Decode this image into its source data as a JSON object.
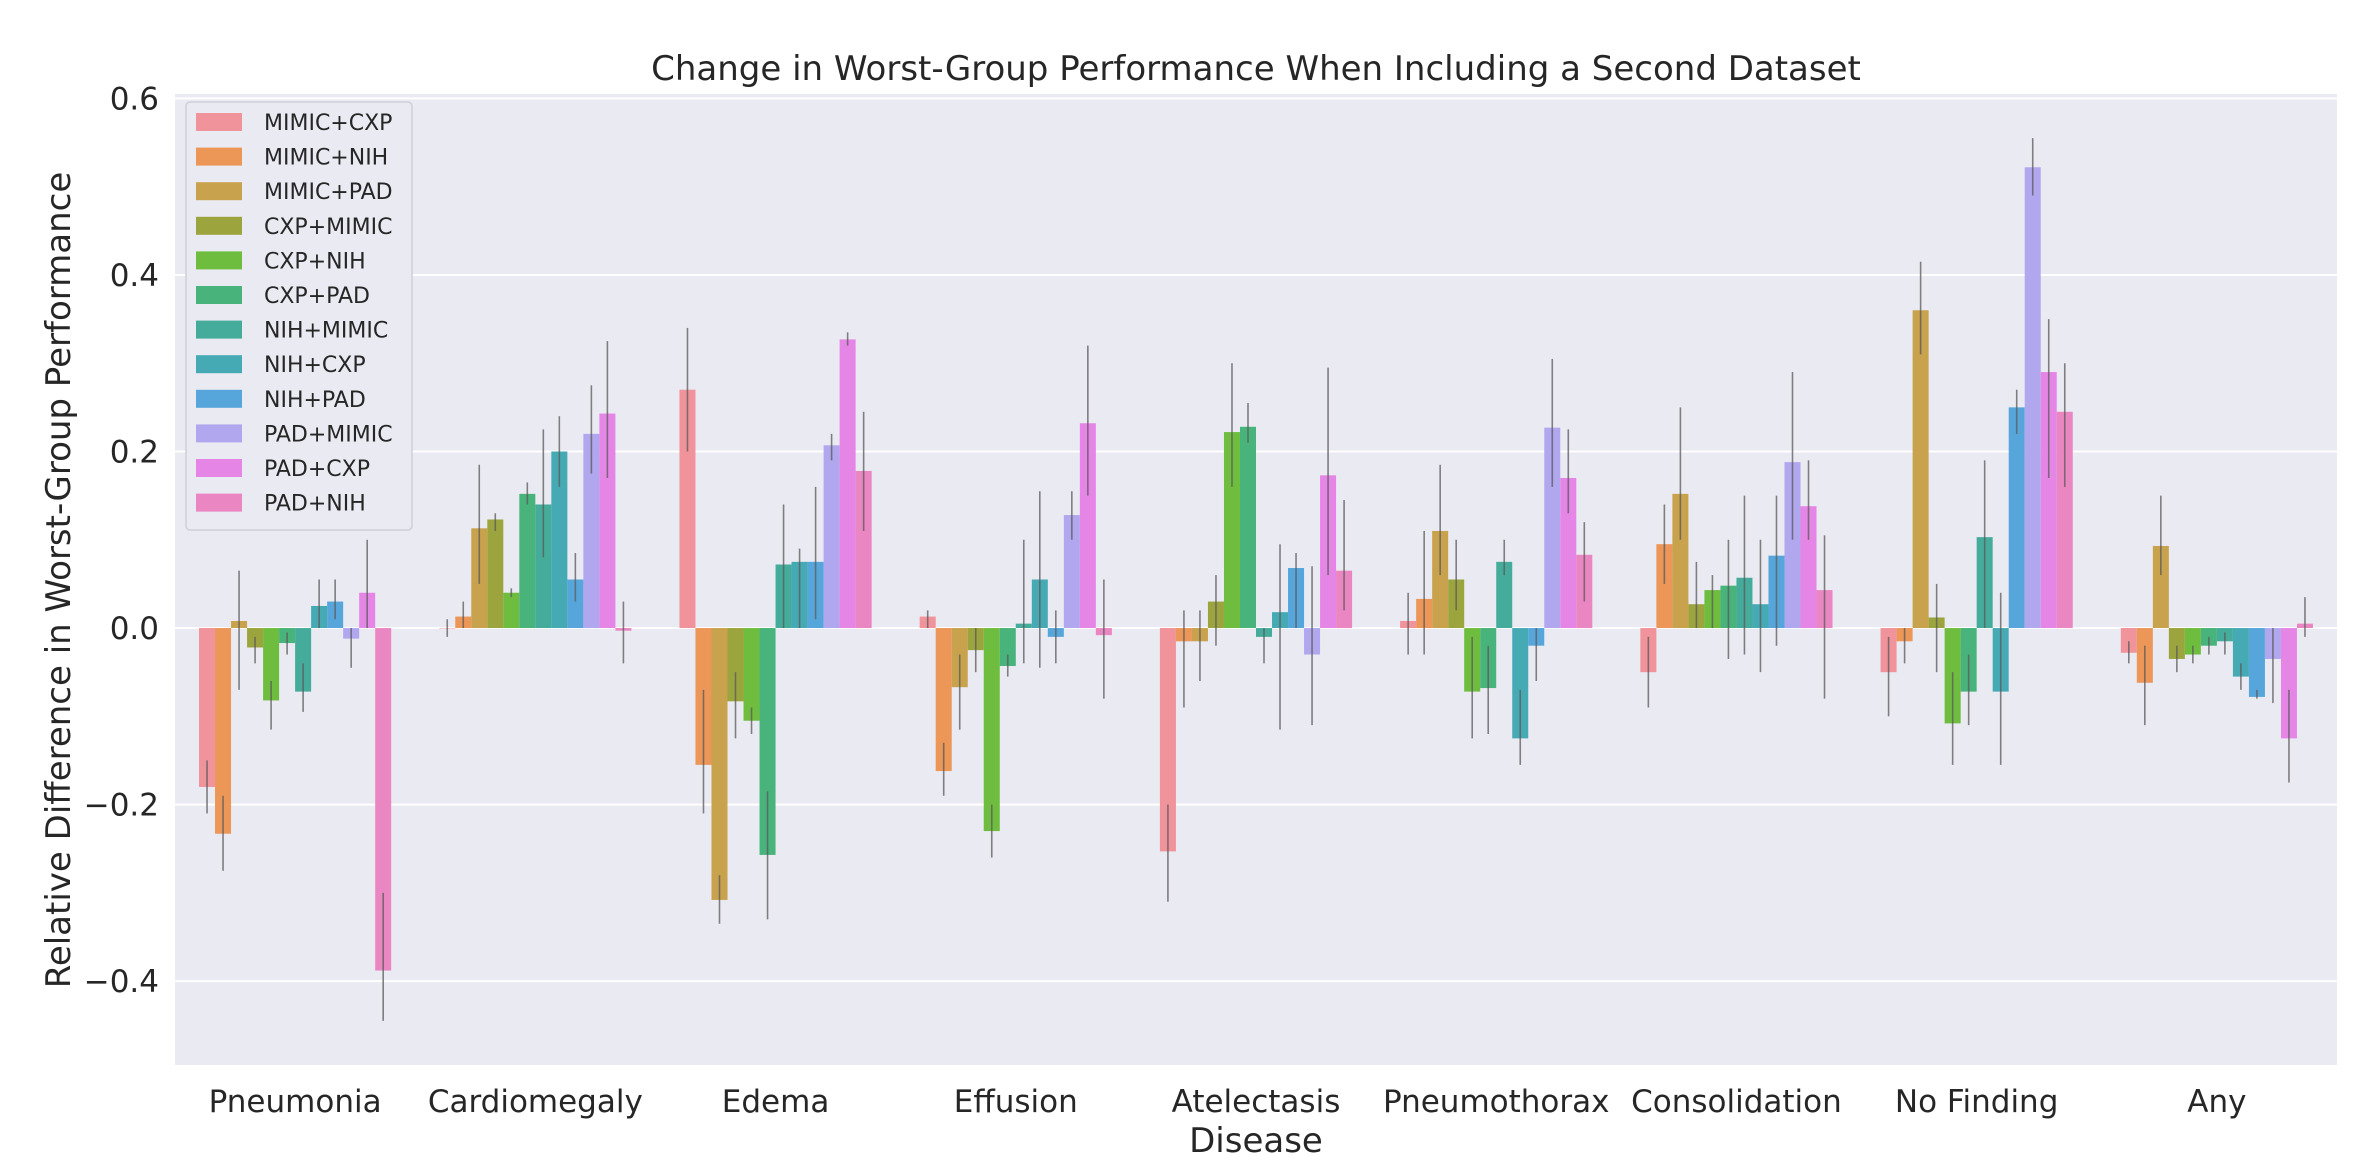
{
  "chart_data": {
    "type": "bar",
    "title": "Change in Worst-Group Performance When Including a Second Dataset",
    "xlabel": "Disease",
    "ylabel": "Relative Difference in Worst-Group Performance",
    "ylim": [
      -0.495,
      0.605
    ],
    "yticks": [
      -0.4,
      -0.2,
      0.0,
      0.2,
      0.4,
      0.6
    ],
    "ytick_labels": [
      "−0.4",
      "−0.2",
      "0.0",
      "0.2",
      "0.4",
      "0.6"
    ],
    "grid": true,
    "legend_position": "top-left",
    "categories": [
      "Pneumonia",
      "Cardiomegaly",
      "Edema",
      "Effusion",
      "Atelectasis",
      "Pneumothorax",
      "Consolidation",
      "No Finding",
      "Any"
    ],
    "series": [
      {
        "name": "MIMIC+CXP",
        "color": "#f0939a",
        "values": [
          -0.18,
          0.0,
          0.27,
          0.013,
          -0.253,
          0.008,
          -0.05,
          -0.05,
          -0.028
        ],
        "err_low": [
          -0.21,
          -0.01,
          0.2,
          0.0,
          -0.31,
          -0.03,
          -0.09,
          -0.1,
          -0.04
        ],
        "err_high": [
          -0.15,
          0.01,
          0.34,
          0.02,
          -0.2,
          0.04,
          -0.01,
          -0.01,
          -0.015
        ]
      },
      {
        "name": "MIMIC+NIH",
        "color": "#ec9658",
        "values": [
          -0.233,
          0.013,
          -0.155,
          -0.162,
          -0.015,
          0.033,
          0.095,
          -0.015,
          -0.062
        ],
        "err_low": [
          -0.275,
          0.0,
          -0.21,
          -0.19,
          -0.09,
          -0.03,
          0.05,
          -0.04,
          -0.11
        ],
        "err_high": [
          -0.19,
          0.03,
          -0.07,
          -0.13,
          0.02,
          0.11,
          0.14,
          0.0,
          -0.02
        ]
      },
      {
        "name": "MIMIC+PAD",
        "color": "#c8a24c",
        "values": [
          0.008,
          0.113,
          -0.308,
          -0.067,
          -0.015,
          0.11,
          0.152,
          0.36,
          0.093
        ],
        "err_low": [
          -0.07,
          0.05,
          -0.335,
          -0.115,
          -0.06,
          0.06,
          0.1,
          0.31,
          0.06
        ],
        "err_high": [
          0.065,
          0.185,
          -0.28,
          -0.03,
          0.02,
          0.185,
          0.25,
          0.415,
          0.15
        ]
      },
      {
        "name": "CXP+MIMIC",
        "color": "#9ca53d",
        "values": [
          -0.022,
          0.123,
          -0.083,
          -0.025,
          0.03,
          0.055,
          0.027,
          0.012,
          -0.035
        ],
        "err_low": [
          -0.04,
          0.11,
          -0.125,
          -0.05,
          -0.02,
          0.02,
          0.0,
          -0.05,
          -0.05
        ],
        "err_high": [
          -0.01,
          0.13,
          -0.05,
          0.0,
          0.06,
          0.1,
          0.075,
          0.05,
          -0.02
        ]
      },
      {
        "name": "CXP+NIH",
        "color": "#6fbd3e",
        "values": [
          -0.082,
          0.04,
          -0.105,
          -0.23,
          0.222,
          -0.072,
          0.043,
          -0.108,
          -0.03
        ],
        "err_low": [
          -0.115,
          0.035,
          -0.12,
          -0.26,
          0.16,
          -0.125,
          0.0,
          -0.155,
          -0.04
        ],
        "err_high": [
          -0.06,
          0.045,
          -0.09,
          -0.2,
          0.3,
          -0.01,
          0.06,
          -0.05,
          -0.02
        ]
      },
      {
        "name": "CXP+PAD",
        "color": "#48b37a",
        "values": [
          -0.017,
          0.152,
          -0.257,
          -0.043,
          0.228,
          -0.068,
          0.048,
          -0.072,
          -0.02
        ],
        "err_low": [
          -0.03,
          0.14,
          -0.33,
          -0.055,
          0.21,
          -0.12,
          -0.035,
          -0.11,
          -0.03
        ],
        "err_high": [
          -0.005,
          0.165,
          -0.185,
          -0.03,
          0.255,
          -0.02,
          0.1,
          -0.03,
          -0.01
        ]
      },
      {
        "name": "NIH+MIMIC",
        "color": "#45ac9c",
        "values": [
          -0.072,
          0.14,
          0.072,
          0.005,
          -0.01,
          0.075,
          0.057,
          0.103,
          -0.015
        ],
        "err_low": [
          -0.095,
          0.08,
          0.0,
          -0.04,
          -0.04,
          0.06,
          -0.03,
          0.0,
          -0.03
        ],
        "err_high": [
          -0.04,
          0.225,
          0.14,
          0.1,
          0.0,
          0.1,
          0.15,
          0.19,
          -0.005
        ]
      },
      {
        "name": "NIH+CXP",
        "color": "#46aab5",
        "values": [
          0.025,
          0.2,
          0.075,
          0.055,
          0.018,
          -0.125,
          0.027,
          -0.072,
          -0.055
        ],
        "err_low": [
          0.0,
          0.16,
          0.0,
          -0.045,
          -0.115,
          -0.155,
          -0.05,
          -0.155,
          -0.07
        ],
        "err_high": [
          0.055,
          0.24,
          0.09,
          0.155,
          0.095,
          -0.07,
          0.1,
          0.04,
          -0.04
        ]
      },
      {
        "name": "NIH+PAD",
        "color": "#56a6dc",
        "values": [
          0.03,
          0.055,
          0.075,
          -0.01,
          0.068,
          -0.02,
          0.082,
          0.25,
          -0.078
        ],
        "err_low": [
          0.01,
          0.03,
          0.01,
          -0.04,
          0.0,
          -0.06,
          -0.02,
          0.22,
          -0.08
        ],
        "err_high": [
          0.055,
          0.085,
          0.16,
          0.02,
          0.085,
          0.0,
          0.15,
          0.27,
          -0.07
        ]
      },
      {
        "name": "PAD+MIMIC",
        "color": "#b1a7ef",
        "values": [
          -0.012,
          0.22,
          0.207,
          0.128,
          -0.03,
          0.227,
          0.188,
          0.522,
          -0.035
        ],
        "err_low": [
          -0.045,
          0.175,
          0.19,
          0.1,
          -0.11,
          0.16,
          0.1,
          0.49,
          -0.085
        ],
        "err_high": [
          0.0,
          0.275,
          0.22,
          0.155,
          0.07,
          0.305,
          0.29,
          0.555,
          0.0
        ]
      },
      {
        "name": "PAD+CXP",
        "color": "#e586e6",
        "values": [
          0.04,
          0.243,
          0.327,
          0.232,
          0.173,
          0.17,
          0.138,
          0.29,
          -0.125
        ],
        "err_low": [
          0.0,
          0.17,
          0.32,
          0.15,
          0.06,
          0.13,
          0.1,
          0.17,
          -0.175
        ],
        "err_high": [
          0.1,
          0.325,
          0.335,
          0.32,
          0.295,
          0.225,
          0.19,
          0.35,
          -0.07
        ]
      },
      {
        "name": "PAD+NIH",
        "color": "#ea87c2",
        "values": [
          -0.388,
          -0.003,
          0.178,
          -0.008,
          0.065,
          0.083,
          0.043,
          0.245,
          0.005
        ],
        "err_low": [
          -0.445,
          -0.04,
          0.11,
          -0.08,
          0.02,
          0.03,
          -0.08,
          0.16,
          -0.01
        ],
        "err_high": [
          -0.3,
          0.03,
          0.245,
          0.055,
          0.145,
          0.12,
          0.105,
          0.3,
          0.035
        ]
      }
    ]
  }
}
